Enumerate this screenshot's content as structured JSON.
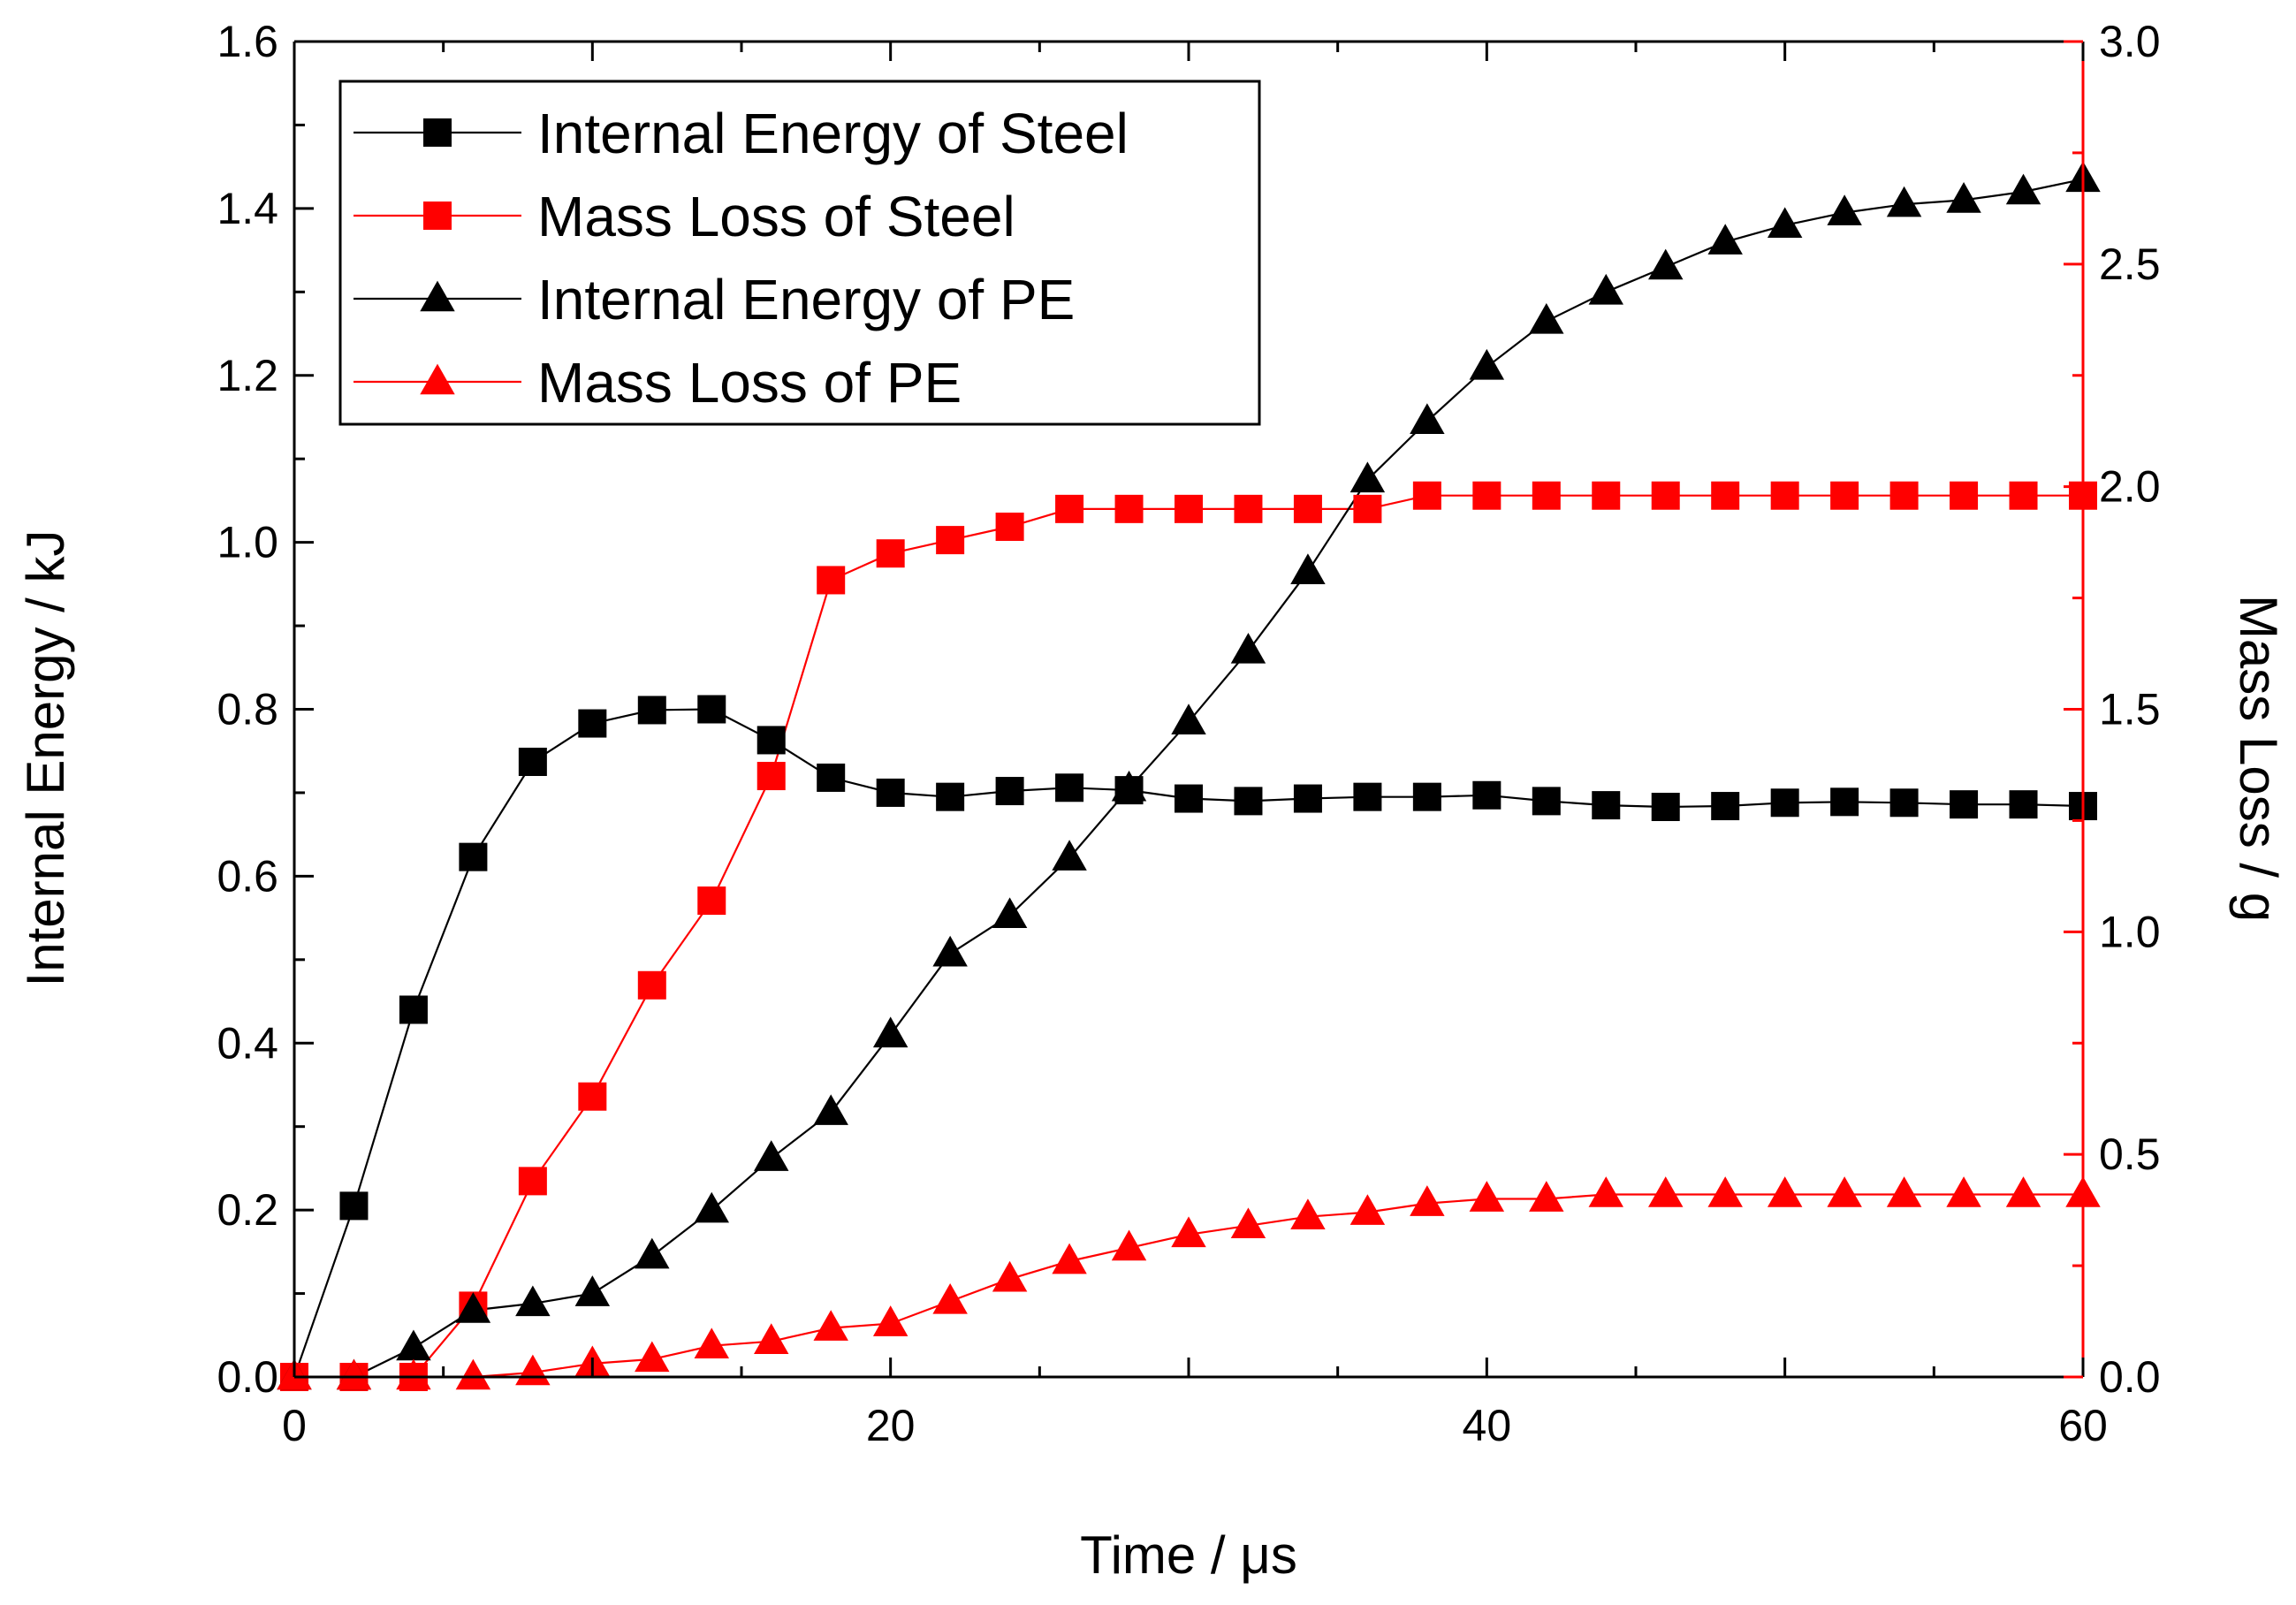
{
  "chart_data": {
    "type": "line",
    "xlabel": "Time / μs",
    "ylabel_left": "Internal Energy / kJ",
    "ylabel_right": "Mass Loss / g",
    "xlim": [
      0,
      60
    ],
    "ylim_left": [
      0,
      1.6
    ],
    "ylim_right": [
      0,
      3.0
    ],
    "x_ticks": [
      0,
      20,
      40,
      60
    ],
    "y_left_ticks": [
      0.0,
      0.2,
      0.4,
      0.6,
      0.8,
      1.0,
      1.2,
      1.4,
      1.6
    ],
    "y_right_ticks": [
      0.0,
      0.5,
      1.0,
      1.5,
      2.0,
      2.5,
      3.0
    ],
    "x_tick_labels": [
      "0",
      "20",
      "40",
      "60"
    ],
    "y_left_tick_labels": [
      "0.0",
      "0.2",
      "0.4",
      "0.6",
      "0.8",
      "1.0",
      "1.2",
      "1.4",
      "1.6"
    ],
    "y_right_tick_labels": [
      "0.0",
      "0.5",
      "1.0",
      "1.5",
      "2.0",
      "2.5",
      "3.0"
    ],
    "grid": false,
    "legend_position": "top-left",
    "colors": {
      "black": "#000000",
      "red": "#ff0000"
    },
    "series": [
      {
        "name": "Internal Energy of Steel",
        "axis": "left",
        "color": "#000000",
        "marker": "square",
        "x": [
          0,
          2,
          4,
          6,
          8,
          10,
          12,
          14,
          16,
          18,
          20,
          22,
          24,
          26,
          28,
          30,
          32,
          34,
          36,
          38,
          40,
          42,
          44,
          46,
          48,
          50,
          52,
          54,
          56,
          58,
          60
        ],
        "values": [
          0.0,
          0.205,
          0.44,
          0.623,
          0.737,
          0.783,
          0.799,
          0.8,
          0.763,
          0.718,
          0.7,
          0.695,
          0.702,
          0.706,
          0.703,
          0.693,
          0.69,
          0.693,
          0.695,
          0.695,
          0.697,
          0.69,
          0.685,
          0.683,
          0.684,
          0.688,
          0.689,
          0.688,
          0.686,
          0.686,
          0.684
        ]
      },
      {
        "name": "Mass Loss of Steel",
        "axis": "right",
        "color": "#ff0000",
        "marker": "square",
        "x": [
          0,
          2,
          4,
          6,
          8,
          10,
          12,
          14,
          16,
          18,
          20,
          22,
          24,
          26,
          28,
          30,
          32,
          34,
          36,
          38,
          40,
          42,
          44,
          46,
          48,
          50,
          52,
          54,
          56,
          58,
          60
        ],
        "values": [
          0.0,
          0.0,
          0.0,
          0.16,
          0.44,
          0.63,
          0.88,
          1.07,
          1.35,
          1.79,
          1.85,
          1.88,
          1.91,
          1.95,
          1.95,
          1.95,
          1.95,
          1.95,
          1.95,
          1.98,
          1.98,
          1.98,
          1.98,
          1.98,
          1.98,
          1.98,
          1.98,
          1.98,
          1.98,
          1.98,
          1.98
        ]
      },
      {
        "name": "Internal Energy of PE",
        "axis": "left",
        "color": "#000000",
        "marker": "triangle",
        "x": [
          0,
          2,
          4,
          6,
          8,
          10,
          12,
          14,
          16,
          18,
          20,
          22,
          24,
          26,
          28,
          30,
          32,
          34,
          36,
          38,
          40,
          42,
          44,
          46,
          48,
          50,
          52,
          54,
          56,
          58,
          60
        ],
        "values": [
          0.0,
          0.0,
          0.035,
          0.08,
          0.088,
          0.1,
          0.145,
          0.2,
          0.262,
          0.317,
          0.41,
          0.507,
          0.553,
          0.622,
          0.705,
          0.785,
          0.87,
          0.965,
          1.075,
          1.145,
          1.21,
          1.265,
          1.3,
          1.33,
          1.36,
          1.38,
          1.395,
          1.405,
          1.41,
          1.42,
          1.435
        ]
      },
      {
        "name": "Mass Loss of PE",
        "axis": "right",
        "color": "#ff0000",
        "marker": "triangle",
        "x": [
          0,
          2,
          4,
          6,
          8,
          10,
          12,
          14,
          16,
          18,
          20,
          22,
          24,
          26,
          28,
          30,
          32,
          34,
          36,
          38,
          40,
          42,
          44,
          46,
          48,
          50,
          52,
          54,
          56,
          58,
          60
        ],
        "values": [
          0.0,
          0.0,
          0.0,
          0.0,
          0.01,
          0.03,
          0.04,
          0.07,
          0.08,
          0.11,
          0.12,
          0.17,
          0.22,
          0.26,
          0.29,
          0.32,
          0.34,
          0.36,
          0.37,
          0.39,
          0.4,
          0.4,
          0.41,
          0.41,
          0.41,
          0.41,
          0.41,
          0.41,
          0.41,
          0.41,
          0.41
        ]
      }
    ]
  }
}
